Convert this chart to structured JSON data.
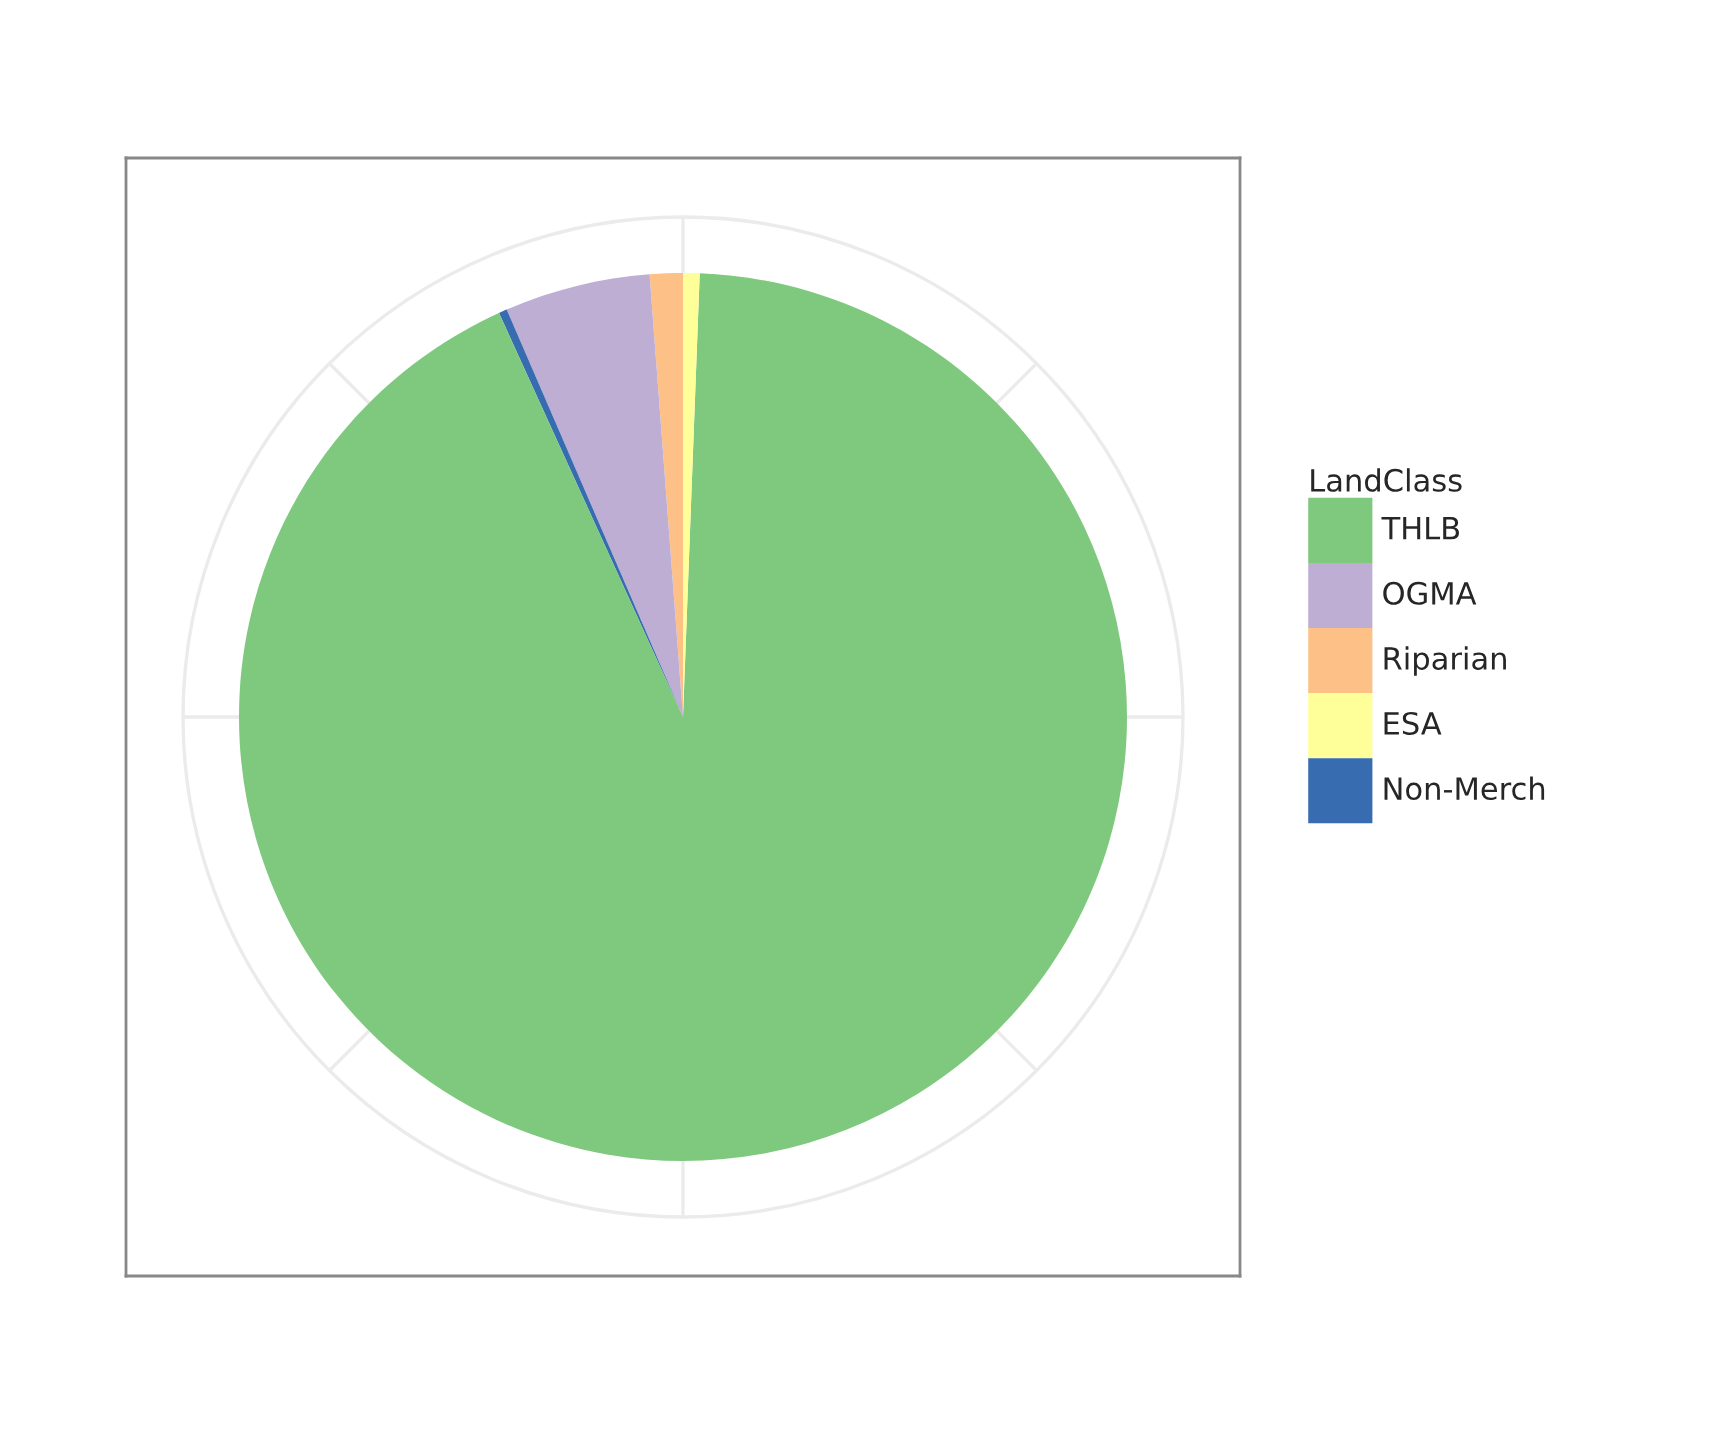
{
  "chart_data": {
    "type": "pie",
    "legend_title": "LandClass",
    "legend": "right",
    "categories": [
      "THLB",
      "OGMA",
      "Riparian",
      "ESA",
      "Non-Merch"
    ],
    "values": [
      92.6,
      5.3,
      1.2,
      0.6,
      0.3
    ],
    "colors": [
      "#7fc97f",
      "#beaed4",
      "#fdc086",
      "#ffff99",
      "#386cb0"
    ],
    "grid": true
  }
}
